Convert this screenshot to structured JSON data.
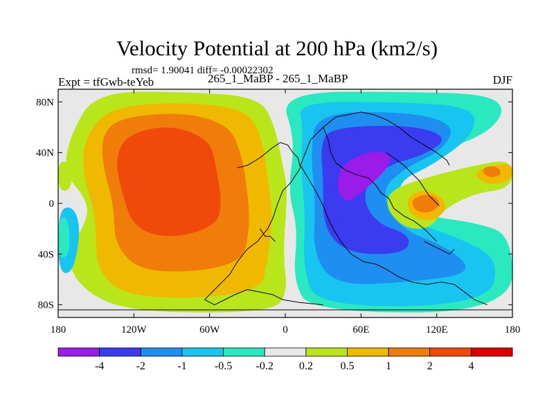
{
  "chart_data": {
    "type": "heatmap",
    "title": "Velocity Potential at 200 hPa (km2/s)",
    "stats_line": "rmsd= 1.90041 diff= -0.00022302",
    "left_label": "Expt = tfGwb-teYeb",
    "center_label": "265_1_MaBP - 265_1_MaBP",
    "right_label": "DJF",
    "xlabel": "",
    "ylabel": "",
    "xlim": [
      -180,
      180
    ],
    "ylim": [
      -90,
      90
    ],
    "x_ticks": [
      {
        "value": -180,
        "label": "180"
      },
      {
        "value": -120,
        "label": "120W"
      },
      {
        "value": -60,
        "label": "60W"
      },
      {
        "value": 0,
        "label": "0"
      },
      {
        "value": 60,
        "label": "60E"
      },
      {
        "value": 120,
        "label": "120E"
      },
      {
        "value": 180,
        "label": "180"
      }
    ],
    "y_ticks": [
      {
        "value": 80,
        "label": "80N"
      },
      {
        "value": 40,
        "label": "40N"
      },
      {
        "value": 0,
        "label": "0"
      },
      {
        "value": -40,
        "label": "40S"
      },
      {
        "value": -80,
        "label": "80S"
      }
    ],
    "colorbar": {
      "levels": [
        -4,
        -2,
        -1,
        -0.5,
        -0.2,
        0.2,
        0.5,
        1,
        2,
        4
      ],
      "labels": [
        "-4",
        "-2",
        "-1",
        "-0.5",
        "-0.2",
        "0.2",
        "0.5",
        "1",
        "2",
        "4"
      ],
      "colors": [
        "#9a1ce8",
        "#3b3bf0",
        "#1e8ef0",
        "#18c4f0",
        "#2ae8c0",
        "#e8e8e8",
        "#b8e61a",
        "#f0b800",
        "#f07c0a",
        "#f04a0a",
        "#e00000"
      ]
    },
    "field_centers": [
      {
        "name": "upper-level velocity potential maximum",
        "lon": -110,
        "lat": 15,
        "value": 3.5
      },
      {
        "name": "upper-level velocity potential minimum",
        "lon": 50,
        "lat": 20,
        "value": -4.5
      },
      {
        "name": "local maximum",
        "lon": 115,
        "lat": 0,
        "value": 1.5
      },
      {
        "name": "local maximum",
        "lon": 162,
        "lat": 30,
        "value": 1.2
      }
    ]
  }
}
